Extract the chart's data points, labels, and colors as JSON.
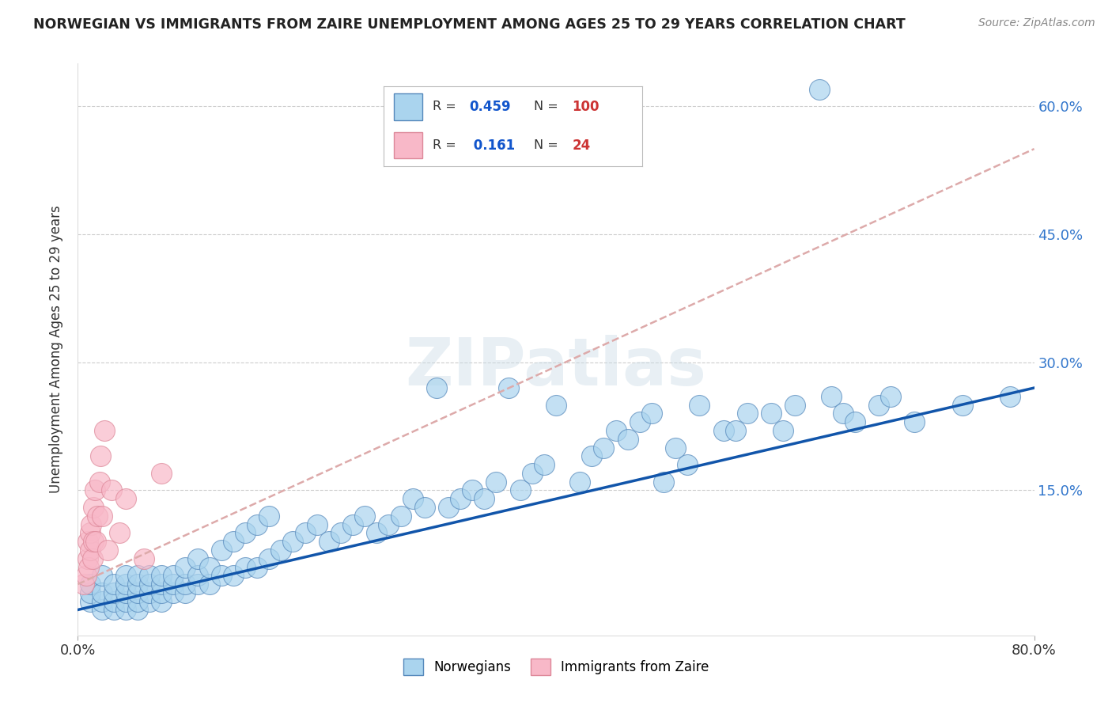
{
  "title": "NORWEGIAN VS IMMIGRANTS FROM ZAIRE UNEMPLOYMENT AMONG AGES 25 TO 29 YEARS CORRELATION CHART",
  "source": "Source: ZipAtlas.com",
  "ylabel": "Unemployment Among Ages 25 to 29 years",
  "xlim": [
    0.0,
    0.8
  ],
  "ylim": [
    -0.02,
    0.65
  ],
  "ytick_positions": [
    0.0,
    0.15,
    0.3,
    0.45,
    0.6
  ],
  "ytick_labels": [
    "",
    "15.0%",
    "30.0%",
    "45.0%",
    "60.0%"
  ],
  "norwegian_color": "#aad4ee",
  "norwegian_edge_color": "#5588bb",
  "immigrant_color": "#f8b8c8",
  "immigrant_edge_color": "#dd8899",
  "norwegian_line_color": "#1155aa",
  "immigrant_line_color": "#dd6677",
  "R_norwegian": "0.459",
  "N_norwegian": "100",
  "R_immigrant": "0.161",
  "N_immigrant": "24",
  "watermark": "ZIPatlas",
  "nor_x": [
    0.01,
    0.01,
    0.01,
    0.02,
    0.02,
    0.02,
    0.02,
    0.03,
    0.03,
    0.03,
    0.03,
    0.04,
    0.04,
    0.04,
    0.04,
    0.04,
    0.05,
    0.05,
    0.05,
    0.05,
    0.05,
    0.06,
    0.06,
    0.06,
    0.06,
    0.07,
    0.07,
    0.07,
    0.07,
    0.08,
    0.08,
    0.08,
    0.09,
    0.09,
    0.09,
    0.1,
    0.1,
    0.1,
    0.11,
    0.11,
    0.12,
    0.12,
    0.13,
    0.13,
    0.14,
    0.14,
    0.15,
    0.15,
    0.16,
    0.16,
    0.17,
    0.18,
    0.19,
    0.2,
    0.21,
    0.22,
    0.23,
    0.24,
    0.25,
    0.26,
    0.27,
    0.28,
    0.29,
    0.3,
    0.31,
    0.32,
    0.33,
    0.34,
    0.35,
    0.36,
    0.37,
    0.38,
    0.39,
    0.4,
    0.42,
    0.43,
    0.44,
    0.45,
    0.46,
    0.47,
    0.48,
    0.49,
    0.5,
    0.51,
    0.52,
    0.54,
    0.55,
    0.56,
    0.58,
    0.59,
    0.6,
    0.62,
    0.63,
    0.64,
    0.65,
    0.67,
    0.68,
    0.7,
    0.74,
    0.78
  ],
  "nor_y": [
    0.02,
    0.03,
    0.04,
    0.01,
    0.02,
    0.03,
    0.05,
    0.01,
    0.02,
    0.03,
    0.04,
    0.01,
    0.02,
    0.03,
    0.04,
    0.05,
    0.01,
    0.02,
    0.03,
    0.04,
    0.05,
    0.02,
    0.03,
    0.04,
    0.05,
    0.02,
    0.03,
    0.04,
    0.05,
    0.03,
    0.04,
    0.05,
    0.03,
    0.04,
    0.06,
    0.04,
    0.05,
    0.07,
    0.04,
    0.06,
    0.05,
    0.08,
    0.05,
    0.09,
    0.06,
    0.1,
    0.06,
    0.11,
    0.07,
    0.12,
    0.08,
    0.09,
    0.1,
    0.11,
    0.09,
    0.1,
    0.11,
    0.12,
    0.1,
    0.11,
    0.12,
    0.14,
    0.13,
    0.27,
    0.13,
    0.14,
    0.15,
    0.14,
    0.16,
    0.27,
    0.15,
    0.17,
    0.18,
    0.25,
    0.16,
    0.19,
    0.2,
    0.22,
    0.21,
    0.23,
    0.24,
    0.16,
    0.2,
    0.18,
    0.25,
    0.22,
    0.22,
    0.24,
    0.24,
    0.22,
    0.25,
    0.62,
    0.26,
    0.24,
    0.23,
    0.25,
    0.26,
    0.23,
    0.25,
    0.26
  ],
  "imm_x": [
    0.005,
    0.007,
    0.008,
    0.008,
    0.009,
    0.01,
    0.01,
    0.011,
    0.012,
    0.013,
    0.013,
    0.014,
    0.015,
    0.016,
    0.018,
    0.019,
    0.02,
    0.022,
    0.025,
    0.028,
    0.035,
    0.04,
    0.055,
    0.07
  ],
  "imm_y": [
    0.04,
    0.05,
    0.07,
    0.09,
    0.06,
    0.08,
    0.1,
    0.11,
    0.07,
    0.09,
    0.13,
    0.15,
    0.09,
    0.12,
    0.16,
    0.19,
    0.12,
    0.22,
    0.08,
    0.15,
    0.1,
    0.14,
    0.07,
    0.17
  ]
}
